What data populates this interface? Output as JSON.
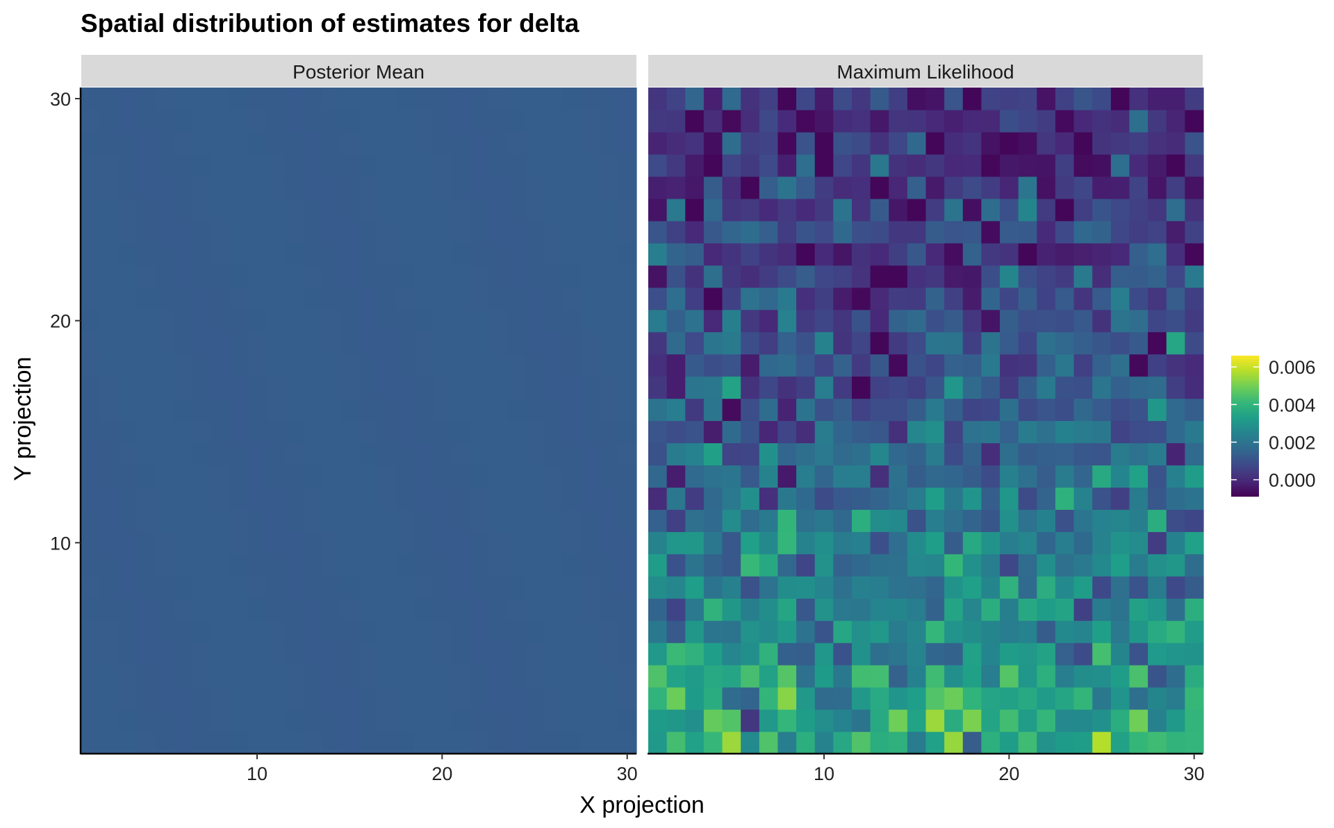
{
  "chart_data": {
    "type": "heatmap",
    "title": "Spatial distribution of estimates for delta",
    "xlabel": "X projection",
    "ylabel": "Y projection",
    "x_ticks": [
      "10",
      "20",
      "30"
    ],
    "y_ticks": [
      "10",
      "20",
      "30"
    ],
    "grid": false,
    "legend_position": "right",
    "grid_size": [
      30,
      30
    ],
    "colormap": "viridis",
    "panels": [
      {
        "name": "Posterior Mean",
        "uniform_value": 0.0013,
        "value_range": [
          0.0012,
          0.0014
        ]
      },
      {
        "name": "Maximum Likelihood",
        "seed": 7
      }
    ],
    "legend": {
      "labels": [
        "0.000",
        "0.002",
        "0.004",
        "0.006"
      ],
      "values": [
        0.0,
        0.002,
        0.004,
        0.006
      ],
      "range": [
        -0.0009,
        0.0066
      ]
    }
  }
}
